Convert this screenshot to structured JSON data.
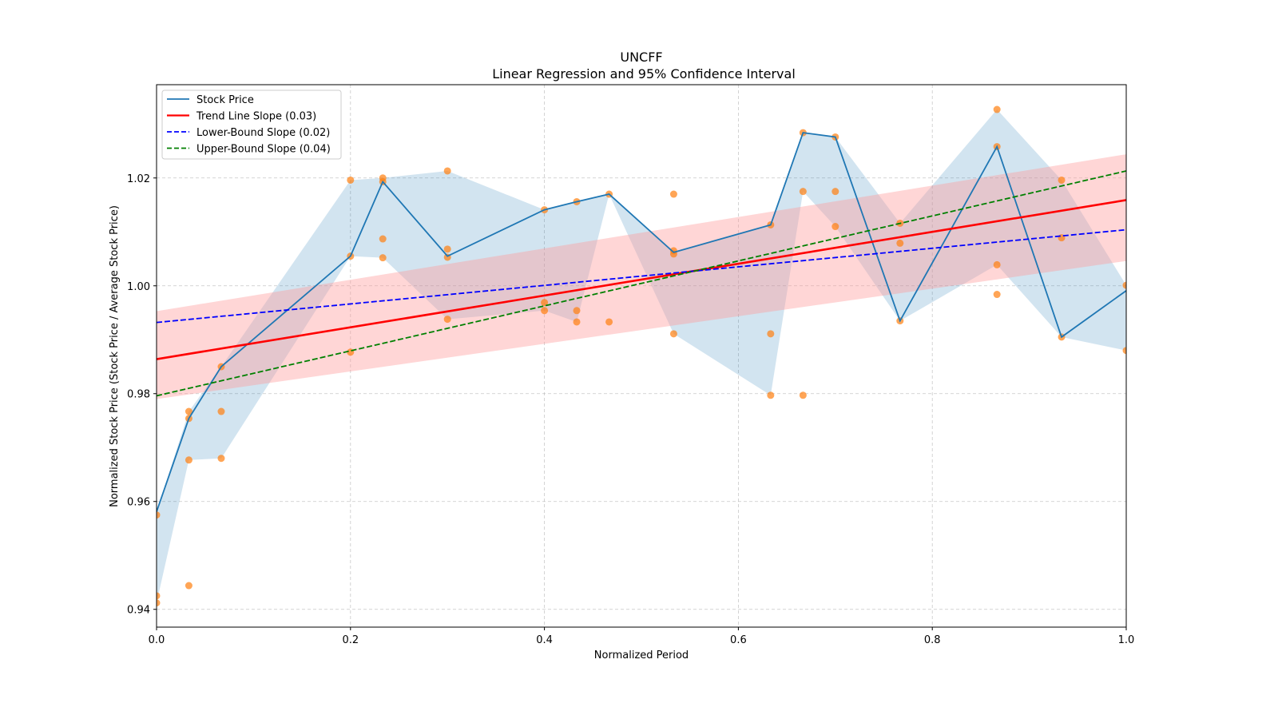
{
  "chart_data": {
    "type": "line",
    "title": "UNCFF",
    "subtitle": "Linear Regression and 95% Confidence Interval",
    "xlabel": "Normalized Period",
    "ylabel": "Normalized Stock Price (Stock Price / Average Stock Price)",
    "xlim": [
      0.0,
      1.0
    ],
    "ylim": [
      0.9367,
      1.0373
    ],
    "xticks": [
      0.0,
      0.2,
      0.4,
      0.6,
      0.8,
      1.0
    ],
    "xtick_labels": [
      "0.0",
      "0.2",
      "0.4",
      "0.6",
      "0.8",
      "1.0"
    ],
    "yticks": [
      0.94,
      0.96,
      0.98,
      1.0,
      1.02
    ],
    "ytick_labels": [
      "0.94",
      "0.96",
      "0.98",
      "1.00",
      "1.02"
    ],
    "grid": true,
    "legend_position": "top-left",
    "colors": {
      "stock": "#1f77b4",
      "stock_band": "#1f77b4",
      "scatter": "#ff7f0e",
      "trend": "#ff0000",
      "trend_band": "#ff9999",
      "lower": "#0000ff",
      "upper": "#008000",
      "grid": "#b0b0b0"
    },
    "legend": [
      {
        "label": "Stock Price",
        "key": "stock",
        "style": "solid"
      },
      {
        "label": "Trend Line Slope (0.03)",
        "key": "trend",
        "style": "solid"
      },
      {
        "label": "Lower-Bound Slope (0.02)",
        "key": "lower",
        "style": "dashed"
      },
      {
        "label": "Upper-Bound Slope (0.04)",
        "key": "upper",
        "style": "dashed"
      }
    ],
    "stock_price": {
      "name": "Stock Price",
      "x": [
        0.0,
        0.0333,
        0.0667,
        0.2,
        0.2333,
        0.3,
        0.4,
        0.4333,
        0.4667,
        0.5333,
        0.6333,
        0.6667,
        0.7,
        0.7667,
        0.8667,
        0.9333,
        1.0
      ],
      "y": [
        0.9581,
        0.9754,
        0.985,
        1.0055,
        1.0193,
        1.0055,
        1.0141,
        1.0156,
        1.017,
        1.0062,
        1.0113,
        1.0284,
        1.0276,
        0.9935,
        1.0258,
        0.9905,
        0.9991
      ]
    },
    "range_band": {
      "x": [
        0.0,
        0.0333,
        0.0667,
        0.2,
        0.2333,
        0.3,
        0.4,
        0.4333,
        0.4667,
        0.5333,
        0.6333,
        0.6667,
        0.7,
        0.7667,
        0.8667,
        0.9333,
        1.0
      ],
      "low": [
        0.9412,
        0.9677,
        0.968,
        1.0055,
        1.0052,
        0.9938,
        0.9954,
        0.9933,
        1.017,
        0.9911,
        0.9797,
        1.0175,
        1.011,
        0.9935,
        1.0039,
        0.9905,
        0.988
      ],
      "high": [
        0.9581,
        0.9767,
        0.985,
        1.0196,
        1.02,
        1.0213,
        1.0141,
        1.0156,
        1.017,
        1.0062,
        1.0113,
        1.0284,
        1.0276,
        1.0116,
        1.0327,
        1.0196,
        1.0001
      ]
    },
    "scatter_points": [
      [
        0.0,
        0.9575
      ],
      [
        0.0,
        0.9425
      ],
      [
        0.0,
        0.9412
      ],
      [
        0.0333,
        0.9767
      ],
      [
        0.0333,
        0.9754
      ],
      [
        0.0333,
        0.9677
      ],
      [
        0.0333,
        0.9444
      ],
      [
        0.0667,
        0.985
      ],
      [
        0.0667,
        0.9767
      ],
      [
        0.0667,
        0.968
      ],
      [
        0.2,
        1.0196
      ],
      [
        0.2,
        1.0055
      ],
      [
        0.2,
        0.9877
      ],
      [
        0.2333,
        1.02
      ],
      [
        0.2333,
        1.0193
      ],
      [
        0.2333,
        1.0087
      ],
      [
        0.2333,
        1.0052
      ],
      [
        0.3,
        1.0213
      ],
      [
        0.3,
        1.0068
      ],
      [
        0.3,
        1.0053
      ],
      [
        0.3,
        0.9938
      ],
      [
        0.4,
        1.0141
      ],
      [
        0.4,
        0.9969
      ],
      [
        0.4,
        0.9954
      ],
      [
        0.4333,
        1.0156
      ],
      [
        0.4333,
        0.9954
      ],
      [
        0.4333,
        0.9933
      ],
      [
        0.4667,
        1.017
      ],
      [
        0.4667,
        0.9933
      ],
      [
        0.5333,
        1.017
      ],
      [
        0.5333,
        1.0065
      ],
      [
        0.5333,
        1.0059
      ],
      [
        0.5333,
        0.9911
      ],
      [
        0.6333,
        1.0113
      ],
      [
        0.6333,
        0.9911
      ],
      [
        0.6333,
        0.9797
      ],
      [
        0.6667,
        1.0284
      ],
      [
        0.6667,
        1.0175
      ],
      [
        0.6667,
        0.9797
      ],
      [
        0.7,
        1.0276
      ],
      [
        0.7,
        1.0175
      ],
      [
        0.7,
        1.011
      ],
      [
        0.7667,
        1.0116
      ],
      [
        0.7667,
        1.0079
      ],
      [
        0.7667,
        0.9935
      ],
      [
        0.8667,
        1.0327
      ],
      [
        0.8667,
        1.0258
      ],
      [
        0.8667,
        1.0039
      ],
      [
        0.8667,
        0.9984
      ],
      [
        0.9333,
        1.0196
      ],
      [
        0.9333,
        1.0089
      ],
      [
        0.9333,
        0.9905
      ],
      [
        1.0,
        1.0001
      ],
      [
        1.0,
        0.988
      ]
    ],
    "trend_line": {
      "name": "Trend Line Slope (0.03)",
      "x": [
        0.0,
        1.0
      ],
      "y": [
        0.9864,
        1.0159
      ]
    },
    "trend_ci_band": {
      "x": [
        0.0,
        1.0
      ],
      "low": [
        0.979,
        1.0046
      ],
      "high": [
        0.9953,
        1.0244
      ]
    },
    "lower_bound_line": {
      "name": "Lower-Bound Slope (0.02)",
      "x": [
        0.0,
        1.0
      ],
      "y": [
        0.9932,
        1.0104
      ]
    },
    "upper_bound_line": {
      "name": "Upper-Bound Slope (0.04)",
      "x": [
        0.0,
        1.0
      ],
      "y": [
        0.9796,
        1.0213
      ]
    }
  }
}
